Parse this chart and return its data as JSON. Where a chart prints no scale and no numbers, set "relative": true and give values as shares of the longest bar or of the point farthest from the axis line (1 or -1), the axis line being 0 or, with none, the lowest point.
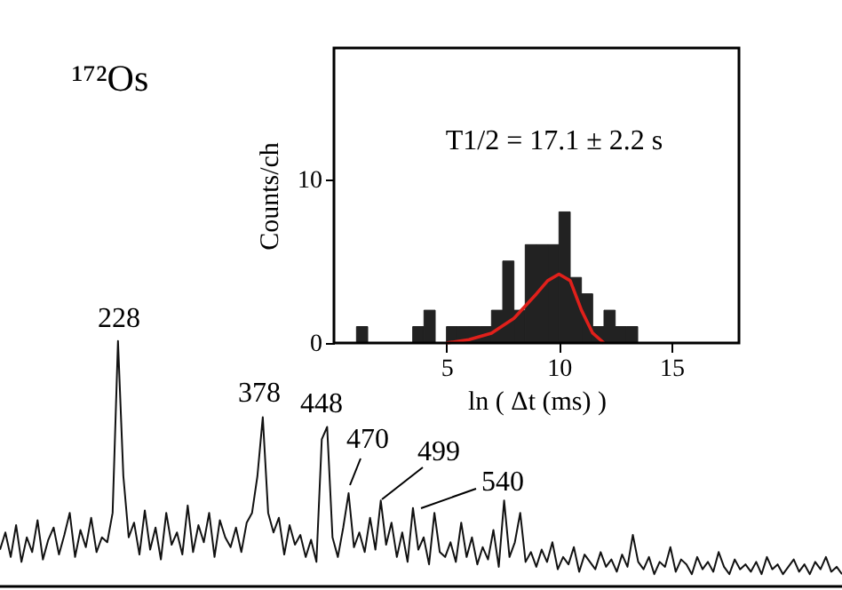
{
  "chart_data": [
    {
      "type": "line",
      "title": "¹⁷²Os",
      "relative": true,
      "color": "#111111",
      "categories": [
        null,
        null,
        null,
        null,
        null,
        null,
        null,
        null,
        null,
        null,
        null,
        null,
        null,
        null,
        null,
        null,
        null,
        null,
        null,
        null,
        null,
        null,
        null,
        null,
        null,
        null,
        null,
        null,
        null,
        null,
        null,
        null,
        null,
        null,
        null,
        null,
        null,
        null,
        null,
        null,
        null,
        null,
        null,
        null,
        null,
        null,
        null,
        null,
        null,
        null,
        null,
        null,
        null,
        null,
        null,
        null,
        null,
        null,
        null,
        null,
        null,
        null,
        null,
        null,
        null,
        null,
        null,
        null,
        null,
        null,
        null,
        null,
        null,
        null,
        null,
        null,
        null,
        null,
        null,
        null,
        null,
        null,
        null,
        null,
        null,
        null,
        null,
        null,
        null,
        null,
        null,
        null,
        null,
        null,
        null,
        null,
        null,
        null,
        null,
        null,
        null,
        null,
        null,
        null,
        null,
        null,
        null,
        null,
        null,
        null,
        null,
        null,
        null,
        null,
        null,
        null,
        null,
        null,
        null,
        null,
        null,
        null,
        null,
        null,
        null,
        null,
        null,
        null,
        null,
        null,
        null,
        null,
        null,
        null,
        null,
        null,
        null,
        null,
        null,
        null,
        null,
        null,
        null,
        null,
        null,
        null,
        null,
        null,
        null,
        null,
        null,
        null,
        null,
        null,
        null,
        null,
        null,
        null
      ],
      "values": [
        0.15,
        0.22,
        0.12,
        0.25,
        0.1,
        0.2,
        0.14,
        0.27,
        0.11,
        0.19,
        0.24,
        0.13,
        0.21,
        0.3,
        0.12,
        0.23,
        0.16,
        0.28,
        0.14,
        0.2,
        0.18,
        0.3,
        1.0,
        0.45,
        0.2,
        0.26,
        0.13,
        0.31,
        0.15,
        0.24,
        0.11,
        0.3,
        0.17,
        0.22,
        0.13,
        0.33,
        0.14,
        0.25,
        0.18,
        0.3,
        0.12,
        0.27,
        0.2,
        0.16,
        0.24,
        0.14,
        0.26,
        0.3,
        0.45,
        0.69,
        0.3,
        0.22,
        0.28,
        0.13,
        0.25,
        0.17,
        0.21,
        0.12,
        0.19,
        0.1,
        0.6,
        0.65,
        0.2,
        0.12,
        0.24,
        0.38,
        0.16,
        0.22,
        0.14,
        0.28,
        0.15,
        0.35,
        0.17,
        0.26,
        0.12,
        0.22,
        0.1,
        0.32,
        0.15,
        0.2,
        0.09,
        0.3,
        0.14,
        0.12,
        0.18,
        0.1,
        0.26,
        0.12,
        0.2,
        0.09,
        0.16,
        0.11,
        0.23,
        0.08,
        0.35,
        0.12,
        0.18,
        0.3,
        0.1,
        0.14,
        0.08,
        0.15,
        0.1,
        0.18,
        0.07,
        0.12,
        0.09,
        0.16,
        0.06,
        0.13,
        0.1,
        0.07,
        0.14,
        0.08,
        0.11,
        0.06,
        0.13,
        0.08,
        0.21,
        0.1,
        0.07,
        0.12,
        0.05,
        0.1,
        0.08,
        0.16,
        0.06,
        0.11,
        0.09,
        0.05,
        0.12,
        0.07,
        0.1,
        0.06,
        0.14,
        0.08,
        0.05,
        0.11,
        0.07,
        0.09,
        0.06,
        0.1,
        0.05,
        0.12,
        0.07,
        0.09,
        0.05,
        0.08,
        0.11,
        0.06,
        0.09,
        0.05,
        0.1,
        0.07,
        0.12,
        0.06,
        0.08,
        0.05
      ],
      "annotations": [
        "228",
        "378",
        "448",
        "470",
        "499",
        "540"
      ]
    },
    {
      "type": "histogram",
      "xlabel": "ln ( Δt (ms) )",
      "ylabel": "Counts/ch",
      "color": "#222222",
      "bins": [
        0,
        0.5,
        1,
        1.5,
        2,
        2.5,
        3,
        3.5,
        4,
        4.5,
        5,
        5.5,
        6,
        6.5,
        7,
        7.5,
        8,
        8.5,
        9,
        9.5,
        10,
        10.5,
        11,
        11.5,
        12,
        12.5,
        13,
        13.5,
        14,
        14.5,
        15,
        15.5,
        16,
        16.5,
        17,
        17.5,
        18
      ],
      "values": [
        0,
        0,
        1,
        0,
        0,
        0,
        0,
        1,
        2,
        0,
        1,
        1,
        1,
        1,
        2,
        5,
        2,
        6,
        6,
        6,
        8,
        4,
        3,
        1,
        2,
        1,
        1,
        0,
        0,
        0,
        0,
        0,
        0,
        0,
        0,
        0
      ],
      "xlim": [
        0,
        18
      ],
      "ylim": [
        0,
        18
      ],
      "xticks": [
        5,
        10,
        15
      ],
      "yticks": [
        0,
        10
      ],
      "annotations": [
        "T1/2 = 17.1 ± 2.2 s"
      ],
      "series": [
        {
          "type": "line",
          "color": "#e0201b",
          "x": [
            5,
            6,
            7,
            8,
            9,
            9.5,
            10,
            10.5,
            11,
            11.5,
            12
          ],
          "values": [
            0,
            0.2,
            0.6,
            1.5,
            3.0,
            3.8,
            4.2,
            3.8,
            2.0,
            0.6,
            0
          ]
        }
      ]
    }
  ]
}
